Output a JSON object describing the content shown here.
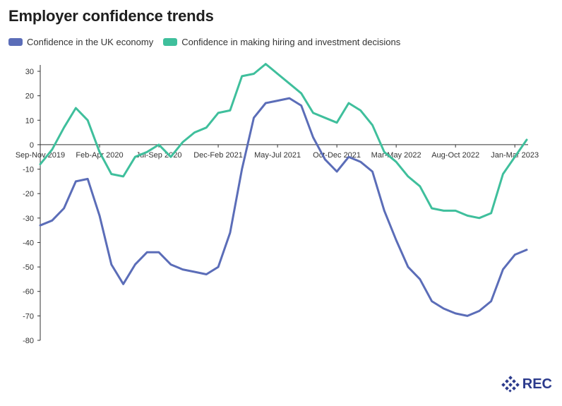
{
  "title": "Employer confidence trends",
  "brand": {
    "text": "REC",
    "color": "#2b3a8c"
  },
  "chart_data": {
    "type": "line",
    "title": "Employer confidence trends",
    "xlabel": "",
    "ylabel": "",
    "ylim": [
      -80,
      35
    ],
    "yticks": [
      30,
      20,
      10,
      0,
      -10,
      -20,
      -30,
      -40,
      -50,
      -60,
      -70,
      -80
    ],
    "grid": false,
    "legend_position": "top-left",
    "x_tick_labels": [
      {
        "index": 0,
        "label": "Sep-Nov 2019"
      },
      {
        "index": 5,
        "label": "Feb-Apr 2020"
      },
      {
        "index": 10,
        "label": "Jul-Sep 2020"
      },
      {
        "index": 15,
        "label": "Dec-Feb 2021"
      },
      {
        "index": 20,
        "label": "May-Jul 2021"
      },
      {
        "index": 25,
        "label": "Oct-Dec 2021"
      },
      {
        "index": 30,
        "label": "Mar-May 2022"
      },
      {
        "index": 35,
        "label": "Aug-Oct 2022"
      },
      {
        "index": 40,
        "label": "Jan-Mar 2023"
      }
    ],
    "series": [
      {
        "name": "Confidence in the UK economy",
        "color": "#5b6db8",
        "values": [
          -33,
          -31,
          -26,
          -15,
          -14,
          -29,
          -49,
          -57,
          -49,
          -44,
          -44,
          -49,
          -51,
          -52,
          -53,
          -50,
          -36,
          -10,
          11,
          17,
          18,
          19,
          16,
          3,
          -6,
          -11,
          -5,
          -7,
          -11,
          -27,
          -39,
          -50,
          -55,
          -64,
          -67,
          -69,
          -70,
          -68,
          -64,
          -51,
          -45,
          -43
        ]
      },
      {
        "name": "Confidence in making hiring and investment decisions",
        "color": "#3fbf9c",
        "values": [
          -8,
          -2,
          7,
          15,
          10,
          -3,
          -12,
          -13,
          -5,
          -3,
          0,
          -5,
          1,
          5,
          7,
          13,
          14,
          28,
          29,
          33,
          29,
          25,
          21,
          13,
          11,
          9,
          17,
          14,
          8,
          -3,
          -7,
          -13,
          -17,
          -26,
          -27,
          -27,
          -29,
          -30,
          -28,
          -12,
          -5,
          2
        ]
      }
    ]
  }
}
